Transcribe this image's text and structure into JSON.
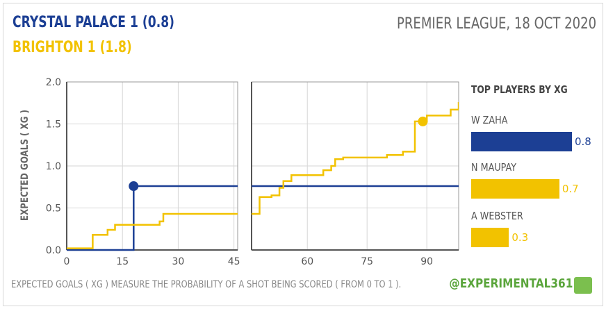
{
  "header": {
    "home": "CRYSTAL PALACE  1  (0.8)",
    "away": "BRIGHTON  1  (1.8)",
    "match_info": "PREMIER LEAGUE, 18 OCT 2020"
  },
  "footer": {
    "note": "EXPECTED GOALS ( XG ) MEASURE THE PROBABILITY OF A SHOT BEING SCORED ( FROM 0 TO 1 ).",
    "handle": "@EXPERIMENTAL361"
  },
  "colors": {
    "home": "#1c3f94",
    "away": "#f2c200",
    "grid": "#d6d6d6",
    "axis": "#555555"
  },
  "chart_data": [
    {
      "type": "line",
      "step": true,
      "title": "",
      "xlabel": "",
      "ylabel": "EXPECTED GOALS ( XG )",
      "ylim": [
        0,
        2.0
      ],
      "yticks": [
        "0.0",
        "0.5",
        "1.0",
        "1.5",
        "2.0"
      ],
      "panels": [
        {
          "xlim": [
            0,
            46
          ],
          "xticks": [
            "0",
            "15",
            "30",
            "45"
          ],
          "xtick_values": [
            0,
            15,
            30,
            45
          ]
        },
        {
          "xlim": [
            46,
            98
          ],
          "xticks": [
            "60",
            "75",
            "90"
          ],
          "xtick_values": [
            60,
            75,
            90
          ]
        }
      ],
      "series": [
        {
          "team": "home",
          "points": [
            [
              0,
              0
            ],
            [
              18,
              0
            ],
            [
              18,
              0.76
            ],
            [
              98,
              0.76
            ]
          ],
          "goals": [
            [
              18,
              0.76
            ]
          ]
        },
        {
          "team": "away",
          "points": [
            [
              0,
              0.02
            ],
            [
              7,
              0.02
            ],
            [
              7,
              0.18
            ],
            [
              11,
              0.18
            ],
            [
              11,
              0.24
            ],
            [
              13,
              0.24
            ],
            [
              13,
              0.3
            ],
            [
              25,
              0.3
            ],
            [
              25,
              0.34
            ],
            [
              26,
              0.34
            ],
            [
              26,
              0.43
            ],
            [
              46,
              0.43
            ],
            [
              48,
              0.43
            ],
            [
              48,
              0.63
            ],
            [
              51,
              0.63
            ],
            [
              51,
              0.65
            ],
            [
              53,
              0.65
            ],
            [
              53,
              0.74
            ],
            [
              54,
              0.74
            ],
            [
              54,
              0.82
            ],
            [
              56,
              0.82
            ],
            [
              56,
              0.89
            ],
            [
              64,
              0.89
            ],
            [
              64,
              0.95
            ],
            [
              66,
              0.95
            ],
            [
              66,
              1.0
            ],
            [
              67,
              1.0
            ],
            [
              67,
              1.08
            ],
            [
              69,
              1.08
            ],
            [
              69,
              1.1
            ],
            [
              80,
              1.1
            ],
            [
              80,
              1.13
            ],
            [
              84,
              1.13
            ],
            [
              84,
              1.17
            ],
            [
              87,
              1.17
            ],
            [
              87,
              1.53
            ],
            [
              90,
              1.53
            ],
            [
              90,
              1.6
            ],
            [
              96,
              1.6
            ],
            [
              96,
              1.67
            ],
            [
              98,
              1.67
            ],
            [
              98,
              1.76
            ]
          ],
          "goals": [
            [
              89,
              1.53
            ]
          ]
        }
      ]
    },
    {
      "type": "bar",
      "orientation": "horizontal",
      "title": "TOP PLAYERS BY XG",
      "categories": [
        "W ZAHA",
        "N MAUPAY",
        "A WEBSTER"
      ],
      "values": [
        0.8,
        0.7,
        0.3
      ],
      "value_labels": [
        "0.8",
        "0.7",
        "0.3"
      ],
      "teams": [
        "home",
        "away",
        "away"
      ]
    }
  ]
}
